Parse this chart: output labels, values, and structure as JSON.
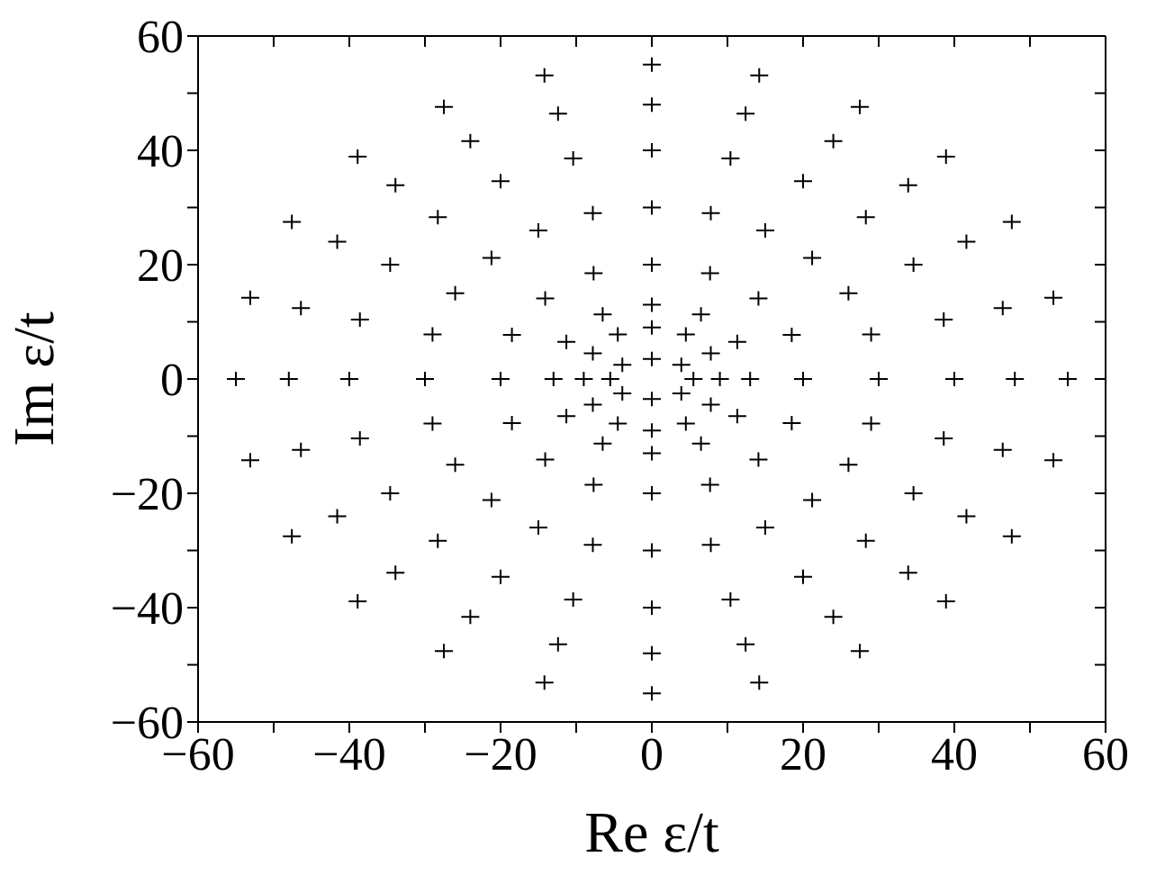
{
  "chart_data": {
    "type": "scatter",
    "xlabel": "Re ε/t",
    "ylabel": "Im ε/t",
    "marker": "cross",
    "color": "#000000",
    "xlim": [
      -60,
      60
    ],
    "ylim": [
      -60,
      60
    ],
    "xticks": [
      -60,
      {
        "value": -50,
        "label": null
      },
      -40,
      {
        "value": -30,
        "label": null
      },
      -20,
      {
        "value": -10,
        "label": null
      },
      0,
      {
        "value": 10,
        "label": null
      },
      20,
      {
        "value": 30,
        "label": null
      },
      40,
      {
        "value": 50,
        "label": null
      },
      60
    ],
    "yticks": [
      -60,
      {
        "value": -50,
        "label": null
      },
      -40,
      {
        "value": -30,
        "label": null
      },
      -20,
      {
        "value": -10,
        "label": null
      },
      0,
      {
        "value": 10,
        "label": null
      },
      20,
      {
        "value": 30,
        "label": null
      },
      40,
      {
        "value": 50,
        "label": null
      },
      60
    ],
    "x": [
      5.5,
      3.9,
      0,
      -3.9,
      -5.5,
      -3.9,
      0,
      3.9,
      9,
      7.8,
      4.5,
      0,
      -4.5,
      -7.8,
      -9,
      -7.8,
      -4.5,
      0,
      4.5,
      7.8,
      13,
      11.3,
      6.5,
      0,
      -6.5,
      -11.3,
      -13,
      -11.3,
      -6.5,
      0,
      6.5,
      11.3,
      20,
      18.5,
      14.1,
      7.7,
      0,
      -7.7,
      -14.1,
      -18.5,
      -20,
      -18.5,
      -14.1,
      -7.7,
      0,
      7.7,
      14.1,
      18.5,
      30,
      29,
      26,
      21.2,
      15,
      7.8,
      0,
      -7.8,
      -15,
      -21.2,
      -26,
      -29,
      -30,
      -29,
      -26,
      -21.2,
      -15,
      -7.8,
      0,
      7.8,
      15,
      21.2,
      26,
      29,
      40,
      38.6,
      34.6,
      28.3,
      20,
      10.4,
      0,
      -10.4,
      -20,
      -28.3,
      -34.6,
      -38.6,
      -40,
      -38.6,
      -34.6,
      -28.3,
      -20,
      -10.4,
      0,
      10.4,
      20,
      28.3,
      34.6,
      38.6,
      48,
      46.4,
      41.6,
      33.9,
      24,
      12.4,
      0,
      -12.4,
      -24,
      -33.9,
      -41.6,
      -46.4,
      -48,
      -46.4,
      -41.6,
      -33.9,
      -24,
      -12.4,
      0,
      12.4,
      24,
      33.9,
      41.6,
      46.4,
      55,
      53.1,
      47.6,
      38.9,
      27.5,
      14.2,
      0,
      -14.2,
      -27.5,
      -38.9,
      -47.6,
      -53.1,
      -55,
      -53.1,
      -47.6,
      -38.9,
      -27.5,
      -14.2,
      0,
      14.2,
      27.5,
      38.9,
      47.6,
      53.1
    ],
    "values": [
      0,
      2.5,
      3.5,
      2.5,
      0,
      -2.5,
      -3.5,
      -2.5,
      0,
      4.5,
      7.8,
      9,
      7.8,
      4.5,
      0,
      -4.5,
      -7.8,
      -9,
      -7.8,
      -4.5,
      0,
      6.5,
      11.3,
      13,
      11.3,
      6.5,
      0,
      -6.5,
      -11.3,
      -13,
      -11.3,
      -6.5,
      0,
      7.7,
      14.1,
      18.5,
      20,
      18.5,
      14.1,
      7.7,
      0,
      -7.7,
      -14.1,
      -18.5,
      -20,
      -18.5,
      -14.1,
      -7.7,
      0,
      7.8,
      15,
      21.2,
      26,
      29,
      30,
      29,
      26,
      21.2,
      15,
      7.8,
      0,
      -7.8,
      -15,
      -21.2,
      -26,
      -29,
      -30,
      -29,
      -26,
      -21.2,
      -15,
      -7.8,
      0,
      10.4,
      20,
      28.3,
      34.6,
      38.6,
      40,
      38.6,
      34.6,
      28.3,
      20,
      10.4,
      0,
      -10.4,
      -20,
      -28.3,
      -34.6,
      -38.6,
      -40,
      -38.6,
      -34.6,
      -28.3,
      -20,
      -10.4,
      0,
      12.4,
      24,
      33.9,
      41.6,
      46.4,
      48,
      46.4,
      41.6,
      33.9,
      24,
      12.4,
      0,
      -12.4,
      -24,
      -33.9,
      -41.6,
      -46.4,
      -48,
      -46.4,
      -41.6,
      -33.9,
      -24,
      -12.4,
      0,
      14.2,
      27.5,
      38.9,
      47.6,
      53.1,
      55,
      53.1,
      47.6,
      38.9,
      27.5,
      14.2,
      0,
      -14.2,
      -27.5,
      -38.9,
      -47.6,
      -53.1,
      -55,
      -53.1,
      -47.6,
      -38.9,
      -27.5,
      -14.2
    ]
  }
}
